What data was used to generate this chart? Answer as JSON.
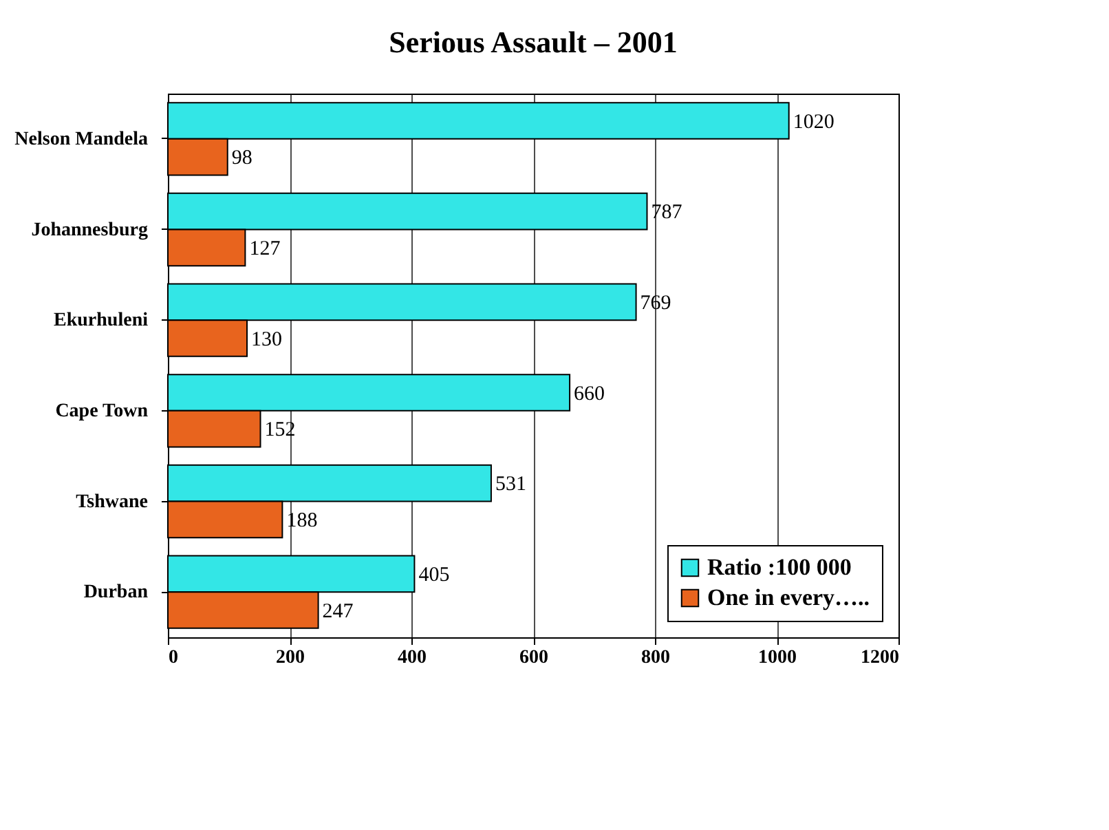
{
  "chart_data": {
    "type": "bar",
    "orientation": "horizontal",
    "title": "Serious Assault – 2001",
    "categories": [
      "Nelson Mandela",
      "Johannesburg",
      "Ekurhuleni",
      "Cape Town",
      "Tshwane",
      "Durban"
    ],
    "series": [
      {
        "name": "Ratio :100 000",
        "color": "#33e6e6",
        "values": [
          1020,
          787,
          769,
          660,
          531,
          405
        ]
      },
      {
        "name": "One in every…..",
        "color": "#e8641e",
        "values": [
          98,
          127,
          130,
          152,
          188,
          247
        ]
      }
    ],
    "xlim": [
      0,
      1200
    ],
    "xticks": [
      0,
      200,
      400,
      600,
      800,
      1000,
      1200
    ],
    "grid": "x",
    "legend": "bottom right",
    "data_labels": true
  }
}
